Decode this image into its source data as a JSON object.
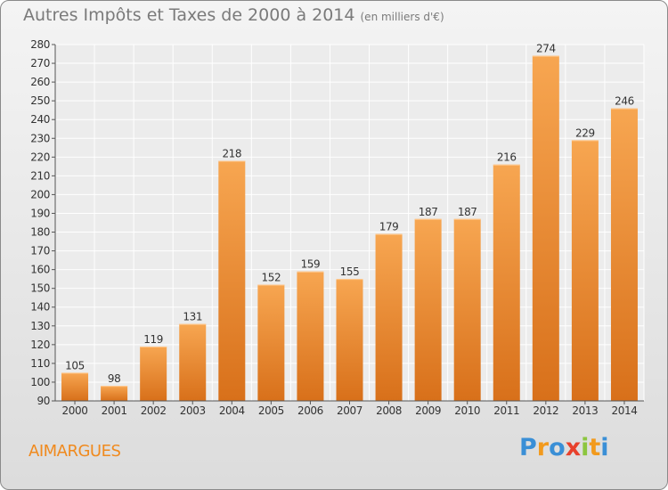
{
  "header": {
    "title": "Autres Impôts et Taxes de 2000 à 2014",
    "unit": "(en milliers d'€)"
  },
  "footer": {
    "commune": "AIMARGUES",
    "brand_letters": [
      "P",
      "r",
      "o",
      "x",
      "i",
      "t",
      "i"
    ],
    "brand_colors": [
      "#3a8fd6",
      "#f29a1d",
      "#3a8fd6",
      "#e8412c",
      "#8cc63f",
      "#f29a1d",
      "#3a8fd6"
    ]
  },
  "chart_data": {
    "type": "bar",
    "title": "Autres Impôts et Taxes de 2000 à 2014",
    "subtitle": "(en milliers d'€)",
    "xlabel": "",
    "ylabel": "",
    "categories": [
      "2000",
      "2001",
      "2002",
      "2003",
      "2004",
      "2005",
      "2006",
      "2007",
      "2008",
      "2009",
      "2010",
      "2011",
      "2012",
      "2013",
      "2014"
    ],
    "values": [
      105,
      98,
      119,
      131,
      218,
      152,
      159,
      155,
      179,
      187,
      187,
      216,
      274,
      229,
      246
    ],
    "ylim": [
      90,
      280
    ],
    "ytick_step": 10,
    "grid": true,
    "bar_color": "#f5a04a",
    "bar_color_dark": "#d9731c"
  }
}
